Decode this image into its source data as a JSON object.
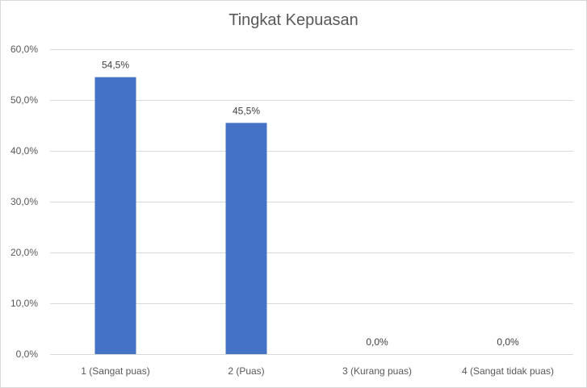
{
  "chart_data": {
    "type": "bar",
    "title": "Tingkat Kepuasan",
    "categories": [
      "1 (Sangat puas)",
      "2 (Puas)",
      "3 (Kurang puas)",
      "4 (Sangat tidak puas)"
    ],
    "values": [
      54.5,
      45.5,
      0.0,
      0.0
    ],
    "value_labels": [
      "54,5%",
      "45,5%",
      "0,0%",
      "0,0%"
    ],
    "ylim": [
      0,
      60
    ],
    "yticks": [
      0,
      10,
      20,
      30,
      40,
      50,
      60
    ],
    "ytick_labels": [
      "0,0%",
      "10,0%",
      "20,0%",
      "30,0%",
      "40,0%",
      "50,0%",
      "60,0%"
    ],
    "xlabel": "",
    "ylabel": "",
    "grid": true,
    "legend": "none",
    "bar_color": "#4472c4",
    "gridline_color": "#d9d9d9",
    "text_color": "#595959"
  }
}
